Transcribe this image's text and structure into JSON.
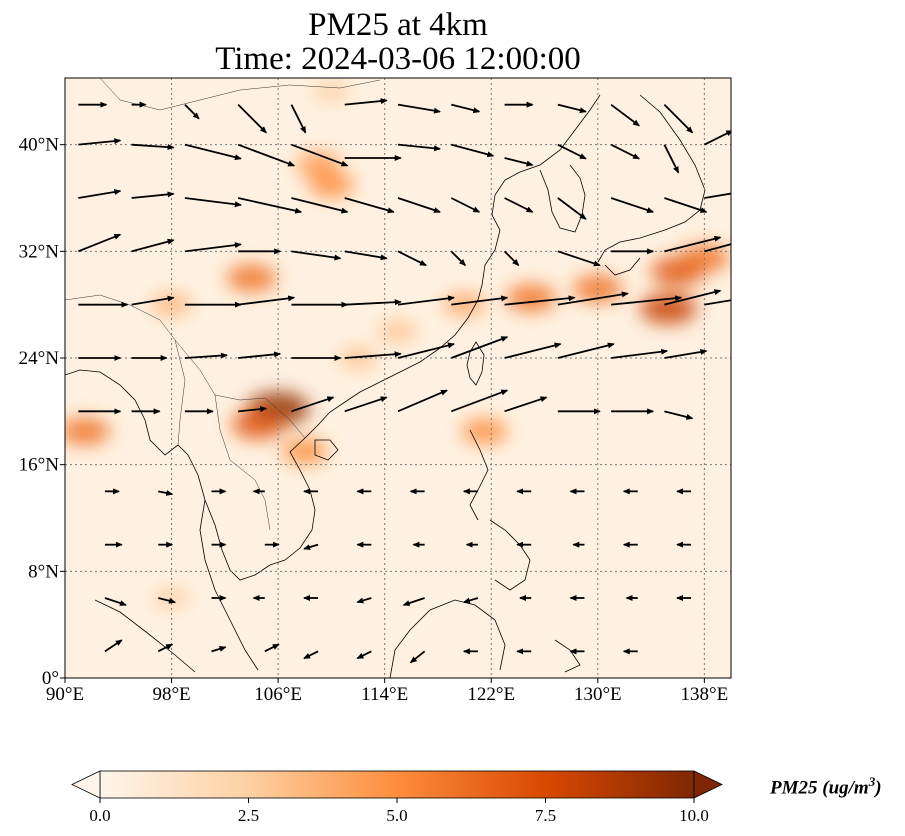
{
  "header": {
    "title_line1": "PM25 at 4km",
    "title_line2": "Time: 2024-03-06 12:00:00"
  },
  "map": {
    "extent": {
      "lon_min": 90,
      "lon_max": 140,
      "lat_min": 0,
      "lat_max": 45
    },
    "x_ticks": [
      {
        "value": 90,
        "label": "90°E"
      },
      {
        "value": 98,
        "label": "98°E"
      },
      {
        "value": 106,
        "label": "106°E"
      },
      {
        "value": 114,
        "label": "114°E"
      },
      {
        "value": 122,
        "label": "122°E"
      },
      {
        "value": 130,
        "label": "130°E"
      },
      {
        "value": 138,
        "label": "138°E"
      }
    ],
    "y_ticks": [
      {
        "value": 0,
        "label": "0°"
      },
      {
        "value": 8,
        "label": "8°N"
      },
      {
        "value": 16,
        "label": "16°N"
      },
      {
        "value": 24,
        "label": "24°N"
      },
      {
        "value": 32,
        "label": "32°N"
      },
      {
        "value": 40,
        "label": "40°N"
      }
    ],
    "gridlines": true,
    "colormap": [
      "#fff5eb",
      "#fdd0a2",
      "#fd8d3c",
      "#d94801",
      "#7f2704"
    ],
    "plumes": [
      {
        "lon": 106,
        "lat": 20.2,
        "level": 9.5
      },
      {
        "lon": 104.5,
        "lat": 19,
        "level": 7
      },
      {
        "lon": 91.5,
        "lat": 18.5,
        "level": 6
      },
      {
        "lon": 108,
        "lat": 17,
        "level": 5
      },
      {
        "lon": 104,
        "lat": 30,
        "level": 6
      },
      {
        "lon": 110,
        "lat": 37,
        "level": 5
      },
      {
        "lon": 109,
        "lat": 38.5,
        "level": 4.5
      },
      {
        "lon": 120,
        "lat": 28,
        "level": 4
      },
      {
        "lon": 125,
        "lat": 28.5,
        "level": 6
      },
      {
        "lon": 130,
        "lat": 29.2,
        "level": 6
      },
      {
        "lon": 136,
        "lat": 30.5,
        "level": 7
      },
      {
        "lon": 138,
        "lat": 31.5,
        "level": 6
      },
      {
        "lon": 135.3,
        "lat": 27.7,
        "level": 8
      },
      {
        "lon": 121.5,
        "lat": 18.5,
        "level": 5
      },
      {
        "lon": 98,
        "lat": 28,
        "level": 3.5
      },
      {
        "lon": 115,
        "lat": 26,
        "level": 3
      },
      {
        "lon": 112,
        "lat": 24,
        "level": 3
      },
      {
        "lon": 98,
        "lat": 6,
        "level": 2.5
      },
      {
        "lon": 110,
        "lat": 44,
        "level": 2.5
      }
    ],
    "wind_vectors": [
      {
        "lon": 91,
        "lat": 43,
        "u": 2,
        "v": 0
      },
      {
        "lon": 91,
        "lat": 40,
        "u": 3,
        "v": 0.3
      },
      {
        "lon": 91,
        "lat": 36,
        "u": 3,
        "v": 0.5
      },
      {
        "lon": 91,
        "lat": 32,
        "u": 3,
        "v": 1.2
      },
      {
        "lon": 91,
        "lat": 28,
        "u": 3.5,
        "v": 0
      },
      {
        "lon": 91,
        "lat": 24,
        "u": 3,
        "v": 0
      },
      {
        "lon": 91,
        "lat": 20,
        "u": 3,
        "v": 0
      },
      {
        "lon": 95,
        "lat": 43,
        "u": 1,
        "v": 0
      },
      {
        "lon": 95,
        "lat": 40,
        "u": 3,
        "v": -0.2
      },
      {
        "lon": 95,
        "lat": 36,
        "u": 3,
        "v": 0.3
      },
      {
        "lon": 95,
        "lat": 32,
        "u": 3,
        "v": 0.8
      },
      {
        "lon": 95,
        "lat": 28,
        "u": 3,
        "v": 0.5
      },
      {
        "lon": 95,
        "lat": 24,
        "u": 2.5,
        "v": 0
      },
      {
        "lon": 95,
        "lat": 20,
        "u": 2,
        "v": 0
      },
      {
        "lon": 99,
        "lat": 43,
        "u": 1,
        "v": -1
      },
      {
        "lon": 99,
        "lat": 40,
        "u": 4,
        "v": -1
      },
      {
        "lon": 99,
        "lat": 36,
        "u": 4,
        "v": -0.5
      },
      {
        "lon": 99,
        "lat": 32,
        "u": 4,
        "v": 0.5
      },
      {
        "lon": 99,
        "lat": 28,
        "u": 4,
        "v": 0
      },
      {
        "lon": 99,
        "lat": 24,
        "u": 3,
        "v": 0.2
      },
      {
        "lon": 99,
        "lat": 20,
        "u": 2,
        "v": 0
      },
      {
        "lon": 103,
        "lat": 43,
        "u": 2,
        "v": -2
      },
      {
        "lon": 103,
        "lat": 40,
        "u": 4,
        "v": -1.5
      },
      {
        "lon": 103,
        "lat": 36,
        "u": 4.5,
        "v": -1
      },
      {
        "lon": 103,
        "lat": 32,
        "u": 3,
        "v": 0
      },
      {
        "lon": 103,
        "lat": 28,
        "u": 4,
        "v": 0.5
      },
      {
        "lon": 103,
        "lat": 24,
        "u": 3,
        "v": 0.3
      },
      {
        "lon": 103,
        "lat": 20,
        "u": 2,
        "v": 0.2
      },
      {
        "lon": 107,
        "lat": 43,
        "u": 1,
        "v": -2
      },
      {
        "lon": 107,
        "lat": 40,
        "u": 4,
        "v": -1.5
      },
      {
        "lon": 107,
        "lat": 36,
        "u": 4,
        "v": -1
      },
      {
        "lon": 107,
        "lat": 32,
        "u": 3.5,
        "v": -0.5
      },
      {
        "lon": 107,
        "lat": 28,
        "u": 4,
        "v": 0
      },
      {
        "lon": 107,
        "lat": 24,
        "u": 3.5,
        "v": 0
      },
      {
        "lon": 107,
        "lat": 20,
        "u": 3,
        "v": 1
      },
      {
        "lon": 111,
        "lat": 43,
        "u": 3,
        "v": 0.3
      },
      {
        "lon": 111,
        "lat": 39,
        "u": 4,
        "v": 0
      },
      {
        "lon": 111,
        "lat": 36,
        "u": 3.5,
        "v": -1
      },
      {
        "lon": 111,
        "lat": 32,
        "u": 3,
        "v": -0.5
      },
      {
        "lon": 111,
        "lat": 28,
        "u": 4,
        "v": 0.2
      },
      {
        "lon": 111,
        "lat": 24,
        "u": 4,
        "v": 0.3
      },
      {
        "lon": 111,
        "lat": 20,
        "u": 3,
        "v": 1
      },
      {
        "lon": 115,
        "lat": 43,
        "u": 3,
        "v": -0.5
      },
      {
        "lon": 115,
        "lat": 40,
        "u": 3,
        "v": -0.3
      },
      {
        "lon": 115,
        "lat": 36,
        "u": 3,
        "v": -1
      },
      {
        "lon": 115,
        "lat": 32,
        "u": 2,
        "v": -1
      },
      {
        "lon": 115,
        "lat": 28,
        "u": 4,
        "v": 0.5
      },
      {
        "lon": 115,
        "lat": 24,
        "u": 4,
        "v": 1
      },
      {
        "lon": 115,
        "lat": 20,
        "u": 3.5,
        "v": 1.5
      },
      {
        "lon": 119,
        "lat": 43,
        "u": 2,
        "v": -0.5
      },
      {
        "lon": 119,
        "lat": 40,
        "u": 3,
        "v": -0.8
      },
      {
        "lon": 119,
        "lat": 36,
        "u": 2,
        "v": -1
      },
      {
        "lon": 119,
        "lat": 32,
        "u": 1,
        "v": -1
      },
      {
        "lon": 119,
        "lat": 28,
        "u": 4,
        "v": 0.5
      },
      {
        "lon": 119,
        "lat": 24,
        "u": 4,
        "v": 1.5
      },
      {
        "lon": 119,
        "lat": 20,
        "u": 4,
        "v": 1.5
      },
      {
        "lon": 123,
        "lat": 43,
        "u": 2,
        "v": 0
      },
      {
        "lon": 123,
        "lat": 39,
        "u": 2,
        "v": -0.5
      },
      {
        "lon": 123,
        "lat": 36,
        "u": 2,
        "v": -1
      },
      {
        "lon": 123,
        "lat": 32,
        "u": 1,
        "v": -1
      },
      {
        "lon": 123,
        "lat": 28,
        "u": 5,
        "v": 0.5
      },
      {
        "lon": 123,
        "lat": 24,
        "u": 4,
        "v": 1
      },
      {
        "lon": 123,
        "lat": 20,
        "u": 3,
        "v": 1
      },
      {
        "lon": 127,
        "lat": 43,
        "u": 2,
        "v": -0.5
      },
      {
        "lon": 127,
        "lat": 40,
        "u": 2,
        "v": -1
      },
      {
        "lon": 127,
        "lat": 36,
        "u": 2,
        "v": -1.5
      },
      {
        "lon": 127,
        "lat": 32,
        "u": 3,
        "v": -1
      },
      {
        "lon": 127,
        "lat": 28,
        "u": 5,
        "v": 0.8
      },
      {
        "lon": 127,
        "lat": 24,
        "u": 4,
        "v": 1
      },
      {
        "lon": 127,
        "lat": 20,
        "u": 3,
        "v": 0
      },
      {
        "lon": 131,
        "lat": 43,
        "u": 2,
        "v": -1.5
      },
      {
        "lon": 131,
        "lat": 40,
        "u": 2,
        "v": -1
      },
      {
        "lon": 131,
        "lat": 36,
        "u": 3,
        "v": -1
      },
      {
        "lon": 131,
        "lat": 32,
        "u": 3,
        "v": 0
      },
      {
        "lon": 131,
        "lat": 28,
        "u": 5,
        "v": 0.5
      },
      {
        "lon": 131,
        "lat": 24,
        "u": 4,
        "v": 0.5
      },
      {
        "lon": 131,
        "lat": 20,
        "u": 3,
        "v": 0
      },
      {
        "lon": 135,
        "lat": 43,
        "u": 2,
        "v": -2
      },
      {
        "lon": 135,
        "lat": 40,
        "u": 1,
        "v": -2
      },
      {
        "lon": 135,
        "lat": 36,
        "u": 3,
        "v": -1
      },
      {
        "lon": 135,
        "lat": 32,
        "u": 4,
        "v": 1
      },
      {
        "lon": 135,
        "lat": 28,
        "u": 4,
        "v": 1
      },
      {
        "lon": 135,
        "lat": 24,
        "u": 3,
        "v": 0.5
      },
      {
        "lon": 135,
        "lat": 20,
        "u": 2,
        "v": -0.5
      },
      {
        "lon": 138,
        "lat": 40,
        "u": 2,
        "v": 1
      },
      {
        "lon": 138,
        "lat": 36,
        "u": 3,
        "v": 0.5
      },
      {
        "lon": 138,
        "lat": 32,
        "u": 3,
        "v": 0.8
      },
      {
        "lon": 138,
        "lat": 28,
        "u": 3,
        "v": 0.5
      },
      {
        "lon": 93,
        "lat": 14,
        "u": 1,
        "v": 0
      },
      {
        "lon": 93,
        "lat": 10,
        "u": 1.2,
        "v": 0
      },
      {
        "lon": 93,
        "lat": 6,
        "u": 1.5,
        "v": -0.5
      },
      {
        "lon": 93,
        "lat": 2,
        "u": 1.2,
        "v": 0.8
      },
      {
        "lon": 97,
        "lat": 14,
        "u": 1,
        "v": -0.2
      },
      {
        "lon": 97,
        "lat": 10,
        "u": 1,
        "v": 0
      },
      {
        "lon": 97,
        "lat": 6,
        "u": 1.2,
        "v": -0.3
      },
      {
        "lon": 97,
        "lat": 2,
        "u": 1,
        "v": 0.5
      },
      {
        "lon": 101,
        "lat": 14,
        "u": 1,
        "v": 0
      },
      {
        "lon": 101,
        "lat": 10,
        "u": 1,
        "v": 0
      },
      {
        "lon": 101,
        "lat": 6,
        "u": 1,
        "v": 0
      },
      {
        "lon": 101,
        "lat": 2,
        "u": 1,
        "v": 0.3
      },
      {
        "lon": 105,
        "lat": 14,
        "u": -0.8,
        "v": 0
      },
      {
        "lon": 105,
        "lat": 10,
        "u": 1,
        "v": 0
      },
      {
        "lon": 105,
        "lat": 6,
        "u": -0.8,
        "v": 0
      },
      {
        "lon": 105,
        "lat": 2,
        "u": 1,
        "v": 0.5
      },
      {
        "lon": 109,
        "lat": 14,
        "u": -1,
        "v": 0
      },
      {
        "lon": 109,
        "lat": 10,
        "u": -1,
        "v": -0.3
      },
      {
        "lon": 109,
        "lat": 6,
        "u": -1,
        "v": 0
      },
      {
        "lon": 109,
        "lat": 2,
        "u": -1,
        "v": -0.5
      },
      {
        "lon": 113,
        "lat": 14,
        "u": -1,
        "v": 0
      },
      {
        "lon": 113,
        "lat": 10,
        "u": -1,
        "v": 0
      },
      {
        "lon": 113,
        "lat": 6,
        "u": -1,
        "v": -0.3
      },
      {
        "lon": 113,
        "lat": 2,
        "u": -1,
        "v": -0.5
      },
      {
        "lon": 117,
        "lat": 14,
        "u": -1,
        "v": 0
      },
      {
        "lon": 117,
        "lat": 10,
        "u": -0.8,
        "v": 0
      },
      {
        "lon": 117,
        "lat": 6,
        "u": -1.5,
        "v": -0.5
      },
      {
        "lon": 117,
        "lat": 2,
        "u": -1,
        "v": -0.8
      },
      {
        "lon": 121,
        "lat": 14,
        "u": -1,
        "v": 0
      },
      {
        "lon": 121,
        "lat": 10,
        "u": -0.8,
        "v": 0
      },
      {
        "lon": 121,
        "lat": 6,
        "u": -1,
        "v": -0.3
      },
      {
        "lon": 121,
        "lat": 2,
        "u": -1,
        "v": 0
      },
      {
        "lon": 125,
        "lat": 14,
        "u": -1,
        "v": 0
      },
      {
        "lon": 125,
        "lat": 10,
        "u": -1,
        "v": 0
      },
      {
        "lon": 125,
        "lat": 6,
        "u": -0.8,
        "v": 0
      },
      {
        "lon": 125,
        "lat": 2,
        "u": -1,
        "v": 0
      },
      {
        "lon": 129,
        "lat": 14,
        "u": -1,
        "v": 0
      },
      {
        "lon": 129,
        "lat": 10,
        "u": -0.8,
        "v": 0
      },
      {
        "lon": 129,
        "lat": 6,
        "u": -1,
        "v": 0
      },
      {
        "lon": 129,
        "lat": 2,
        "u": -1,
        "v": 0
      },
      {
        "lon": 133,
        "lat": 14,
        "u": -1,
        "v": 0
      },
      {
        "lon": 133,
        "lat": 10,
        "u": -1,
        "v": 0
      },
      {
        "lon": 133,
        "lat": 6,
        "u": -0.8,
        "v": 0
      },
      {
        "lon": 133,
        "lat": 2,
        "u": -1,
        "v": 0
      },
      {
        "lon": 137,
        "lat": 14,
        "u": -1,
        "v": 0
      },
      {
        "lon": 137,
        "lat": 10,
        "u": -1,
        "v": 0
      },
      {
        "lon": 137,
        "lat": 6,
        "u": -1,
        "v": 0
      }
    ]
  },
  "colorbar": {
    "label": "PM25 (ug/m",
    "label_superscript": "3",
    "label_close": ")",
    "min": 0,
    "max": 10,
    "extend": "both",
    "ticks": [
      {
        "value": 0,
        "label": "0.0"
      },
      {
        "value": 2.5,
        "label": "2.5"
      },
      {
        "value": 5,
        "label": "5.0"
      },
      {
        "value": 7.5,
        "label": "7.5"
      },
      {
        "value": 10,
        "label": "10.0"
      }
    ]
  }
}
